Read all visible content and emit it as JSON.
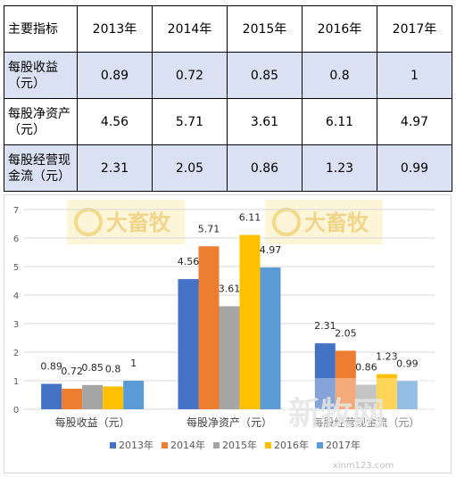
{
  "table": {
    "header": [
      "主要指标",
      "2013年",
      "2014年",
      "2015年",
      "2016年",
      "2017年"
    ],
    "rows": [
      {
        "label": "每股收益（元）",
        "label_lines": [
          "每股收益",
          "（元）"
        ],
        "values": [
          "0.89",
          "0.72",
          "0.85",
          "0.8",
          "1"
        ]
      },
      {
        "label": "每股净资产（元）",
        "label_lines": [
          "每股净资产",
          "（元）"
        ],
        "values": [
          "4.56",
          "5.71",
          "3.61",
          "6.11",
          "4.97"
        ]
      },
      {
        "label": "每股经营现金流（元）",
        "label_lines": [
          "每股经营现",
          "金流（元）"
        ],
        "values": [
          "2.31",
          "2.05",
          "0.86",
          "1.23",
          "0.99"
        ]
      }
    ]
  },
  "chart_data": {
    "type": "bar",
    "categories": [
      "每股收益（元）",
      "每股净资产（元）",
      "每股经营现金流（元）"
    ],
    "series": [
      {
        "name": "2013年",
        "color": "#4472c4",
        "values": [
          0.89,
          4.56,
          2.31
        ]
      },
      {
        "name": "2014年",
        "color": "#ed7d31",
        "values": [
          0.72,
          5.71,
          2.05
        ]
      },
      {
        "name": "2015年",
        "color": "#a5a5a5",
        "values": [
          0.85,
          3.61,
          0.86
        ]
      },
      {
        "name": "2016年",
        "color": "#ffc000",
        "values": [
          0.8,
          6.11,
          1.23
        ]
      },
      {
        "name": "2017年",
        "color": "#5b9bd5",
        "values": [
          1,
          4.97,
          0.99
        ]
      }
    ],
    "ylim": [
      0,
      7
    ],
    "yticks": [
      0,
      1,
      2,
      3,
      4,
      5,
      6,
      7
    ],
    "grid": true,
    "legend_position": "bottom"
  },
  "watermarks": {
    "logo_text": "大畜牧",
    "site_text": "新牧网",
    "url": "xinm123.com"
  }
}
